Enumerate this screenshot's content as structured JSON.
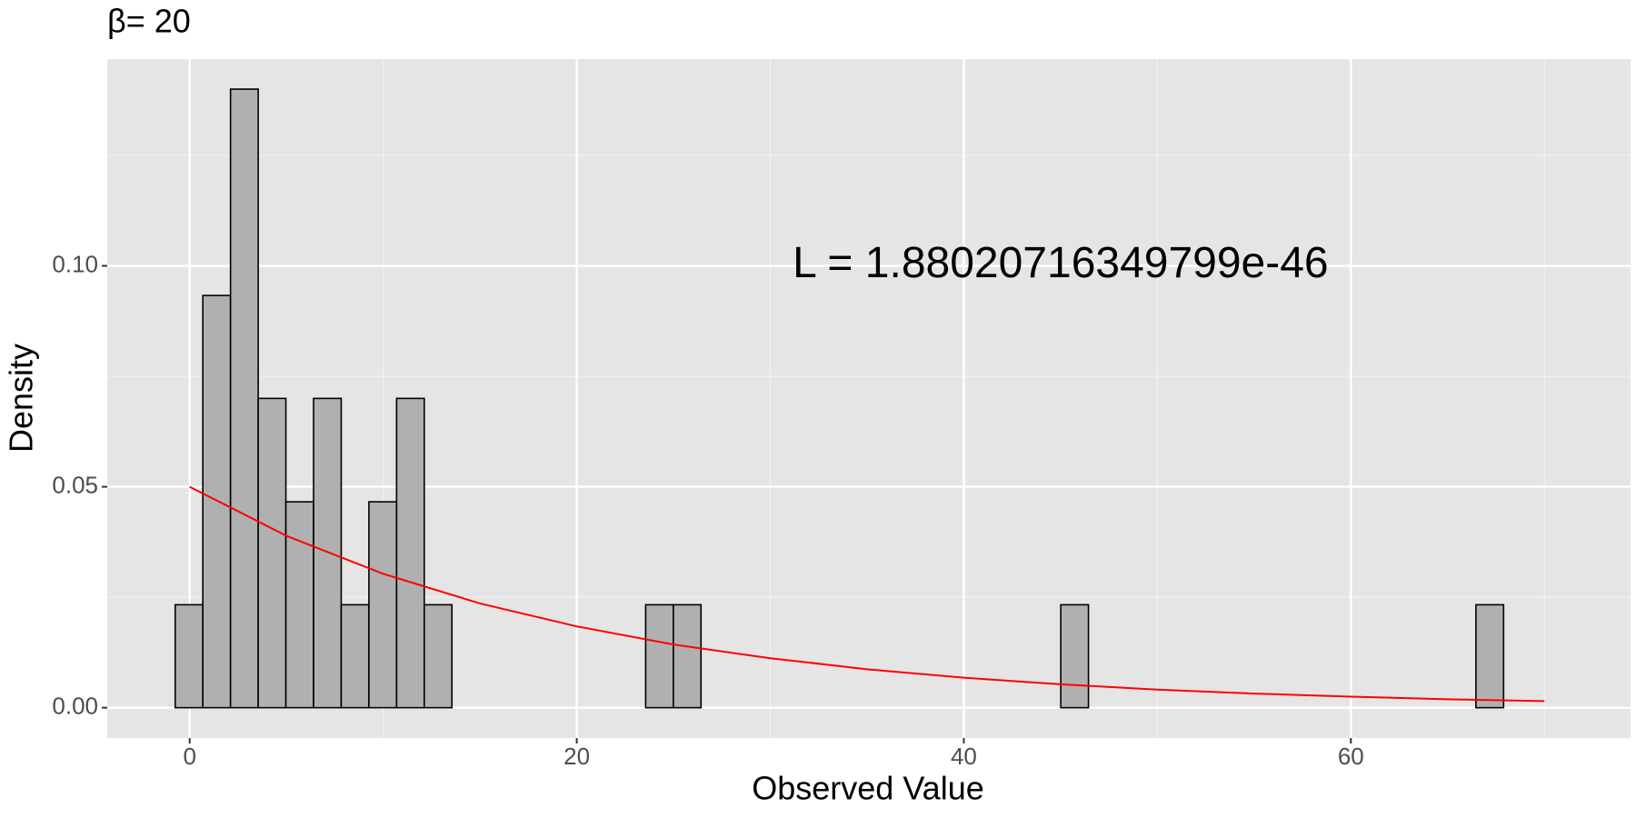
{
  "chart_data": {
    "type": "histogram",
    "title": "β= 20",
    "annotation": "L = 1.88020716349799e-46",
    "xlabel": "Observed Value",
    "ylabel": "Density",
    "bins": [
      -0.75,
      0.68,
      2.11,
      3.54,
      4.97,
      6.4,
      7.83,
      9.26,
      10.69,
      12.12,
      13.55,
      14.98,
      16.41,
      17.84,
      19.27,
      20.7,
      22.13,
      23.56,
      24.99,
      26.42,
      27.85,
      29.28,
      30.71,
      32.14,
      33.57,
      35.0,
      36.43,
      37.86,
      39.29,
      40.72,
      42.15,
      43.58,
      45.01,
      46.44,
      47.87,
      49.3,
      50.73,
      52.16,
      53.59,
      55.02,
      56.45,
      57.88,
      59.31,
      60.74,
      62.17,
      63.6,
      65.03,
      66.46,
      67.89,
      69.32,
      70.75
    ],
    "values": [
      0.0233,
      0.0933,
      0.14,
      0.07,
      0.0466,
      0.07,
      0.0233,
      0.0466,
      0.07,
      0.0233,
      0,
      0,
      0,
      0,
      0,
      0,
      0,
      0.0233,
      0.0233,
      0,
      0,
      0,
      0,
      0,
      0,
      0,
      0,
      0,
      0,
      0,
      0,
      0,
      0.0233,
      0,
      0,
      0,
      0,
      0,
      0,
      0,
      0,
      0,
      0,
      0,
      0,
      0,
      0,
      0.0233,
      0,
      0,
      0
    ],
    "color": "#b0b0b0",
    "edgecolor": "#000000",
    "line": {
      "x": [
        0,
        5,
        10,
        15,
        20,
        25,
        30,
        35,
        40,
        45,
        50,
        55,
        60,
        65,
        70
      ],
      "values": [
        0.05,
        0.0389,
        0.0303,
        0.0236,
        0.0184,
        0.0143,
        0.0112,
        0.0087,
        0.0068,
        0.0053,
        0.0041,
        0.0032,
        0.0025,
        0.0019,
        0.0015
      ],
      "color": "#ff0000"
    },
    "xlim": [
      -4.26,
      74.45
    ],
    "ylim": [
      -0.00686,
      0.1468
    ],
    "xticks": [
      0,
      20,
      40,
      60
    ],
    "yticks": [
      {
        "value": 0,
        "label": "0.00"
      },
      {
        "value": 0.05,
        "label": "0.05"
      },
      {
        "value": 0.1,
        "label": "0.10"
      }
    ],
    "xminor": [
      10,
      30,
      50,
      70
    ],
    "yminor": [
      0.025,
      0.075,
      0.125
    ],
    "grid": true
  }
}
